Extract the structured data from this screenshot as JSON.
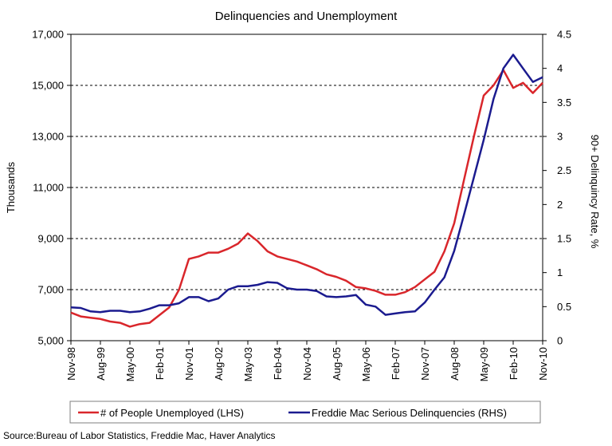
{
  "chart_data": {
    "type": "line",
    "title": "Delinquencies and Unemployment",
    "ylabel_left": "Thousands",
    "ylabel_right": "90+ Delinquincy Rate, %",
    "xlabel": "",
    "ylim_left": [
      5000,
      17000
    ],
    "ylim_right": [
      0,
      4.5
    ],
    "y_ticks_left": [
      "5,000",
      "7,000",
      "9,000",
      "11,000",
      "13,000",
      "15,000",
      "17,000"
    ],
    "y_ticks_right": [
      "0",
      "0.5",
      "1",
      "1.5",
      "2",
      "2.5",
      "3",
      "3.5",
      "4",
      "4.5"
    ],
    "x_ticks": [
      "Nov-98",
      "Aug-99",
      "May-00",
      "Feb-01",
      "Nov-01",
      "Aug-02",
      "May-03",
      "Feb-04",
      "Nov-04",
      "Aug-05",
      "May-06",
      "Feb-07",
      "Nov-07",
      "Aug-08",
      "May-09",
      "Feb-10",
      "Nov-10"
    ],
    "x_range": [
      "Nov-98",
      "Nov-10"
    ],
    "grid": "horizontal dashed",
    "legend_position": "bottom",
    "series": [
      {
        "name": "# of People Unemployed (LHS)",
        "axis": "left",
        "color": "#d9262b",
        "x": [
          "Nov-98",
          "Feb-99",
          "May-99",
          "Aug-99",
          "Nov-99",
          "Feb-00",
          "May-00",
          "Aug-00",
          "Nov-00",
          "Feb-01",
          "May-01",
          "Aug-01",
          "Nov-01",
          "Feb-02",
          "May-02",
          "Aug-02",
          "Nov-02",
          "Feb-03",
          "May-03",
          "Aug-03",
          "Nov-03",
          "Feb-04",
          "May-04",
          "Aug-04",
          "Nov-04",
          "Feb-05",
          "May-05",
          "Aug-05",
          "Nov-05",
          "Feb-06",
          "May-06",
          "Aug-06",
          "Nov-06",
          "Feb-07",
          "May-07",
          "Aug-07",
          "Nov-07",
          "Feb-08",
          "May-08",
          "Aug-08",
          "Nov-08",
          "Feb-09",
          "May-09",
          "Aug-09",
          "Nov-09",
          "Feb-10",
          "May-10",
          "Aug-10",
          "Nov-10"
        ],
        "values": [
          6100,
          5950,
          5900,
          5850,
          5750,
          5700,
          5550,
          5650,
          5700,
          6000,
          6300,
          7000,
          8200,
          8300,
          8450,
          8450,
          8600,
          8800,
          9200,
          8900,
          8500,
          8300,
          8200,
          8100,
          7950,
          7800,
          7600,
          7500,
          7350,
          7100,
          7050,
          6950,
          6800,
          6800,
          6900,
          7100,
          7400,
          7700,
          8500,
          9600,
          11300,
          13000,
          14600,
          15000,
          15600,
          14900,
          15100,
          14700,
          15100
        ]
      },
      {
        "name": "Freddie Mac Serious Delinquencies (RHS)",
        "axis": "right",
        "color": "#1b1b8f",
        "x": [
          "Nov-98",
          "Feb-99",
          "May-99",
          "Aug-99",
          "Nov-99",
          "Feb-00",
          "May-00",
          "Aug-00",
          "Nov-00",
          "Feb-01",
          "May-01",
          "Aug-01",
          "Nov-01",
          "Feb-02",
          "May-02",
          "Aug-02",
          "Nov-02",
          "Feb-03",
          "May-03",
          "Aug-03",
          "Nov-03",
          "Feb-04",
          "May-04",
          "Aug-04",
          "Nov-04",
          "Feb-05",
          "May-05",
          "Aug-05",
          "Nov-05",
          "Feb-06",
          "May-06",
          "Aug-06",
          "Nov-06",
          "Feb-07",
          "May-07",
          "Aug-07",
          "Nov-07",
          "Feb-08",
          "May-08",
          "Aug-08",
          "Nov-08",
          "Feb-09",
          "May-09",
          "Aug-09",
          "Nov-09",
          "Feb-10",
          "May-10",
          "Aug-10",
          "Nov-10"
        ],
        "values": [
          0.49,
          0.48,
          0.43,
          0.42,
          0.44,
          0.44,
          0.42,
          0.43,
          0.47,
          0.52,
          0.52,
          0.55,
          0.64,
          0.64,
          0.58,
          0.62,
          0.75,
          0.8,
          0.8,
          0.82,
          0.86,
          0.85,
          0.77,
          0.75,
          0.75,
          0.73,
          0.65,
          0.64,
          0.65,
          0.67,
          0.53,
          0.5,
          0.38,
          0.4,
          0.42,
          0.43,
          0.56,
          0.75,
          0.93,
          1.32,
          1.85,
          2.4,
          2.95,
          3.55,
          4.0,
          4.2,
          4.0,
          3.8,
          3.87
        ]
      }
    ]
  },
  "source": "Source:Bureau of Labor Statistics, Freddie Mac, Haver Analytics"
}
